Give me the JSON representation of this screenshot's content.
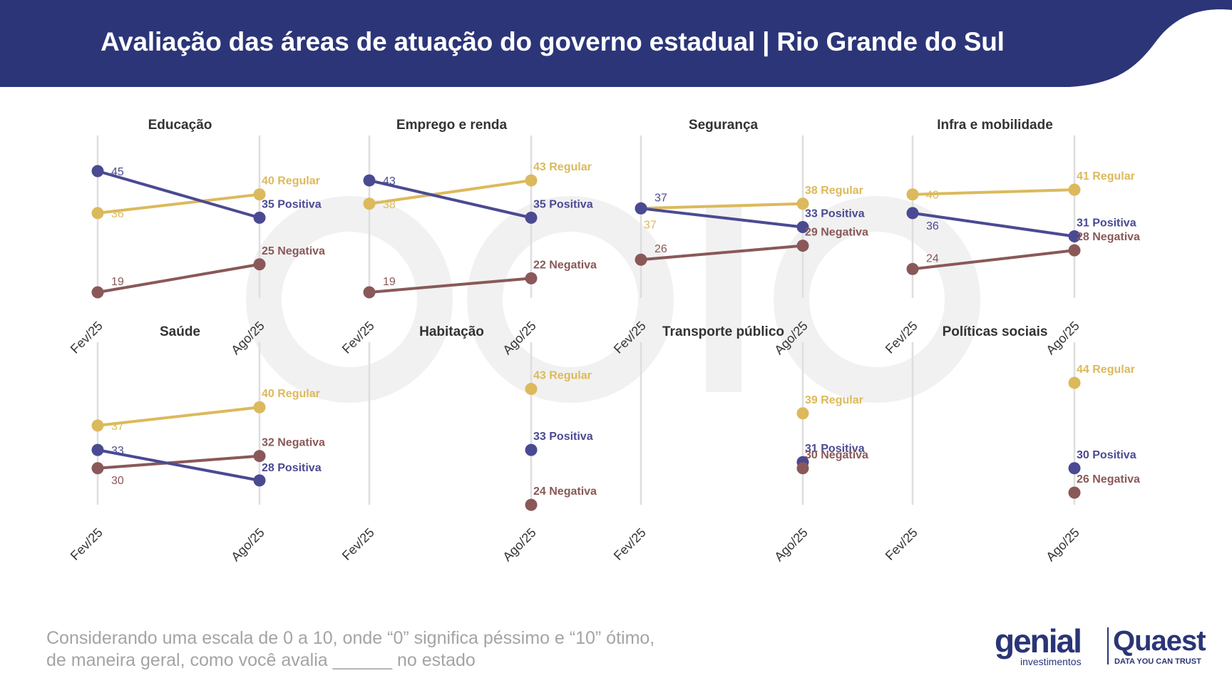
{
  "header": {
    "title": "Avaliação das áreas de atuação do governo estadual | Rio Grande do Sul",
    "bg_color": "#2b3578"
  },
  "colors": {
    "Positiva": "#4a4a92",
    "Regular": "#dcb95c",
    "Negativa": "#8a5858",
    "gridline": "#dedede",
    "panel_title": "#333333"
  },
  "chart_data": [
    {
      "type": "line",
      "title": "Educação",
      "categories": [
        "Fev/25",
        "Ago/25"
      ],
      "ylim": [
        15,
        47
      ],
      "series": [
        {
          "name": "Regular",
          "values": [
            36,
            40
          ]
        },
        {
          "name": "Positiva",
          "values": [
            45,
            35
          ]
        },
        {
          "name": "Negativa",
          "values": [
            19,
            25
          ]
        }
      ]
    },
    {
      "type": "line",
      "title": "Emprego e renda",
      "categories": [
        "Fev/25",
        "Ago/25"
      ],
      "ylim": [
        15,
        47
      ],
      "series": [
        {
          "name": "Regular",
          "values": [
            38,
            43
          ]
        },
        {
          "name": "Positiva",
          "values": [
            43,
            35
          ]
        },
        {
          "name": "Negativa",
          "values": [
            19,
            22
          ]
        }
      ]
    },
    {
      "type": "line",
      "title": "Segurança",
      "categories": [
        "Fev/25",
        "Ago/25"
      ],
      "ylim": [
        15,
        47
      ],
      "series": [
        {
          "name": "Regular",
          "values": [
            37,
            38
          ]
        },
        {
          "name": "Positiva",
          "values": [
            37,
            33
          ]
        },
        {
          "name": "Negativa",
          "values": [
            26,
            29
          ]
        }
      ]
    },
    {
      "type": "line",
      "title": "Infra e mobilidade",
      "categories": [
        "Fev/25",
        "Ago/25"
      ],
      "ylim": [
        15,
        47
      ],
      "series": [
        {
          "name": "Regular",
          "values": [
            40,
            41
          ]
        },
        {
          "name": "Positiva",
          "values": [
            36,
            31
          ]
        },
        {
          "name": "Negativa",
          "values": [
            24,
            28
          ]
        }
      ]
    },
    {
      "type": "line",
      "title": "Saúde",
      "categories": [
        "Fev/25",
        "Ago/25"
      ],
      "ylim": [
        15,
        47
      ],
      "series": [
        {
          "name": "Regular",
          "values": [
            37,
            40
          ]
        },
        {
          "name": "Negativa",
          "values": [
            30,
            32
          ]
        },
        {
          "name": "Positiva",
          "values": [
            33,
            28
          ]
        }
      ]
    },
    {
      "type": "line",
      "title": "Habitação",
      "categories": [
        "Fev/25",
        "Ago/25"
      ],
      "ylim": [
        15,
        47
      ],
      "series": [
        {
          "name": "Regular",
          "values": [
            null,
            43
          ]
        },
        {
          "name": "Positiva",
          "values": [
            null,
            33
          ]
        },
        {
          "name": "Negativa",
          "values": [
            null,
            24
          ]
        }
      ]
    },
    {
      "type": "line",
      "title": "Transporte público",
      "categories": [
        "Fev/25",
        "Ago/25"
      ],
      "ylim": [
        15,
        47
      ],
      "series": [
        {
          "name": "Regular",
          "values": [
            null,
            39
          ]
        },
        {
          "name": "Positiva",
          "values": [
            null,
            31
          ]
        },
        {
          "name": "Negativa",
          "values": [
            null,
            30
          ]
        }
      ]
    },
    {
      "type": "line",
      "title": "Políticas sociais",
      "categories": [
        "Fev/25",
        "Ago/25"
      ],
      "ylim": [
        15,
        47
      ],
      "series": [
        {
          "name": "Regular",
          "values": [
            null,
            44
          ]
        },
        {
          "name": "Positiva",
          "values": [
            null,
            30
          ]
        },
        {
          "name": "Negativa",
          "values": [
            null,
            26
          ]
        }
      ]
    }
  ],
  "footer": {
    "note_line1": "Considerando uma escala de 0 a 10, onde “0” significa péssimo e “10” ótimo,",
    "note_line2": "de maneira geral, como você avalia ______ no estado"
  },
  "logos": {
    "genial": "genial",
    "genial_sub": "investimentos",
    "quaest": "Quaest",
    "quaest_tagline": "DATA YOU CAN TRUST"
  }
}
